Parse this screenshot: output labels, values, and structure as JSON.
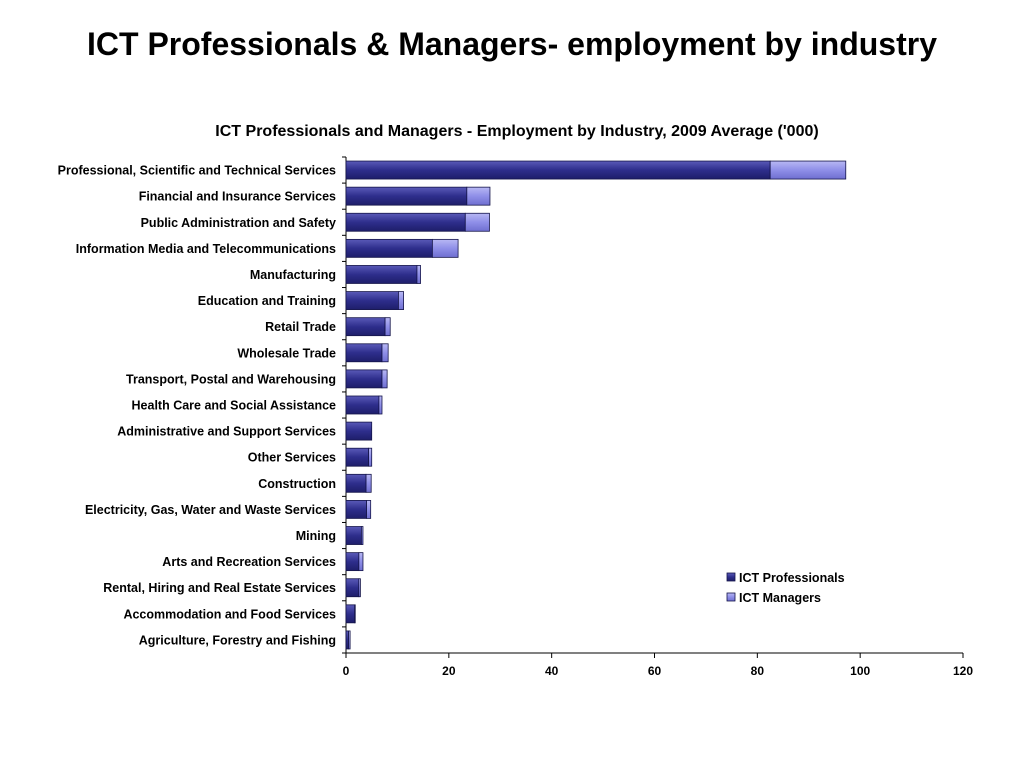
{
  "page": {
    "title": "ICT Professionals & Managers- employment by industry"
  },
  "chart_data": {
    "type": "bar",
    "orientation": "horizontal",
    "stacked": true,
    "title": "ICT Professionals and Managers - Employment by Industry, 2009 Average ('000)",
    "xlabel": "",
    "ylabel": "",
    "xlim": [
      0,
      120
    ],
    "xticks": [
      "0",
      "20",
      "40",
      "60",
      "80",
      "100",
      "120"
    ],
    "grid": false,
    "legend_position": "right",
    "categories": [
      "Professional, Scientific and Technical Services",
      "Financial and Insurance Services",
      "Public Administration and Safety",
      "Information Media and Telecommunications",
      "Manufacturing",
      "Education and Training",
      "Retail Trade",
      "Wholesale Trade",
      "Transport, Postal and Warehousing",
      "Health Care and Social Assistance",
      "Administrative and Support Services",
      "Other Services",
      "Construction",
      "Electricity, Gas, Water and Waste Services",
      "Mining",
      "Arts and Recreation Services",
      "Rental, Hiring and Real Estate Services",
      "Accommodation and Food Services",
      "Agriculture, Forestry and Fishing"
    ],
    "series": [
      {
        "name": "ICT Professionals",
        "color": "#2e2e8c",
        "values": [
          82.5,
          23.5,
          23.2,
          16.8,
          13.8,
          10.2,
          7.6,
          7.0,
          7.0,
          6.4,
          5.0,
          4.4,
          3.9,
          4.0,
          3.0,
          2.5,
          2.5,
          1.7,
          0.5
        ]
      },
      {
        "name": "ICT Managers",
        "color": "#8f8fe8",
        "values": [
          14.7,
          4.5,
          4.7,
          5.0,
          0.7,
          1.0,
          1.0,
          1.2,
          1.0,
          0.6,
          0.0,
          0.6,
          1.0,
          0.8,
          0.3,
          0.8,
          0.3,
          0.1,
          0.3
        ]
      }
    ]
  }
}
